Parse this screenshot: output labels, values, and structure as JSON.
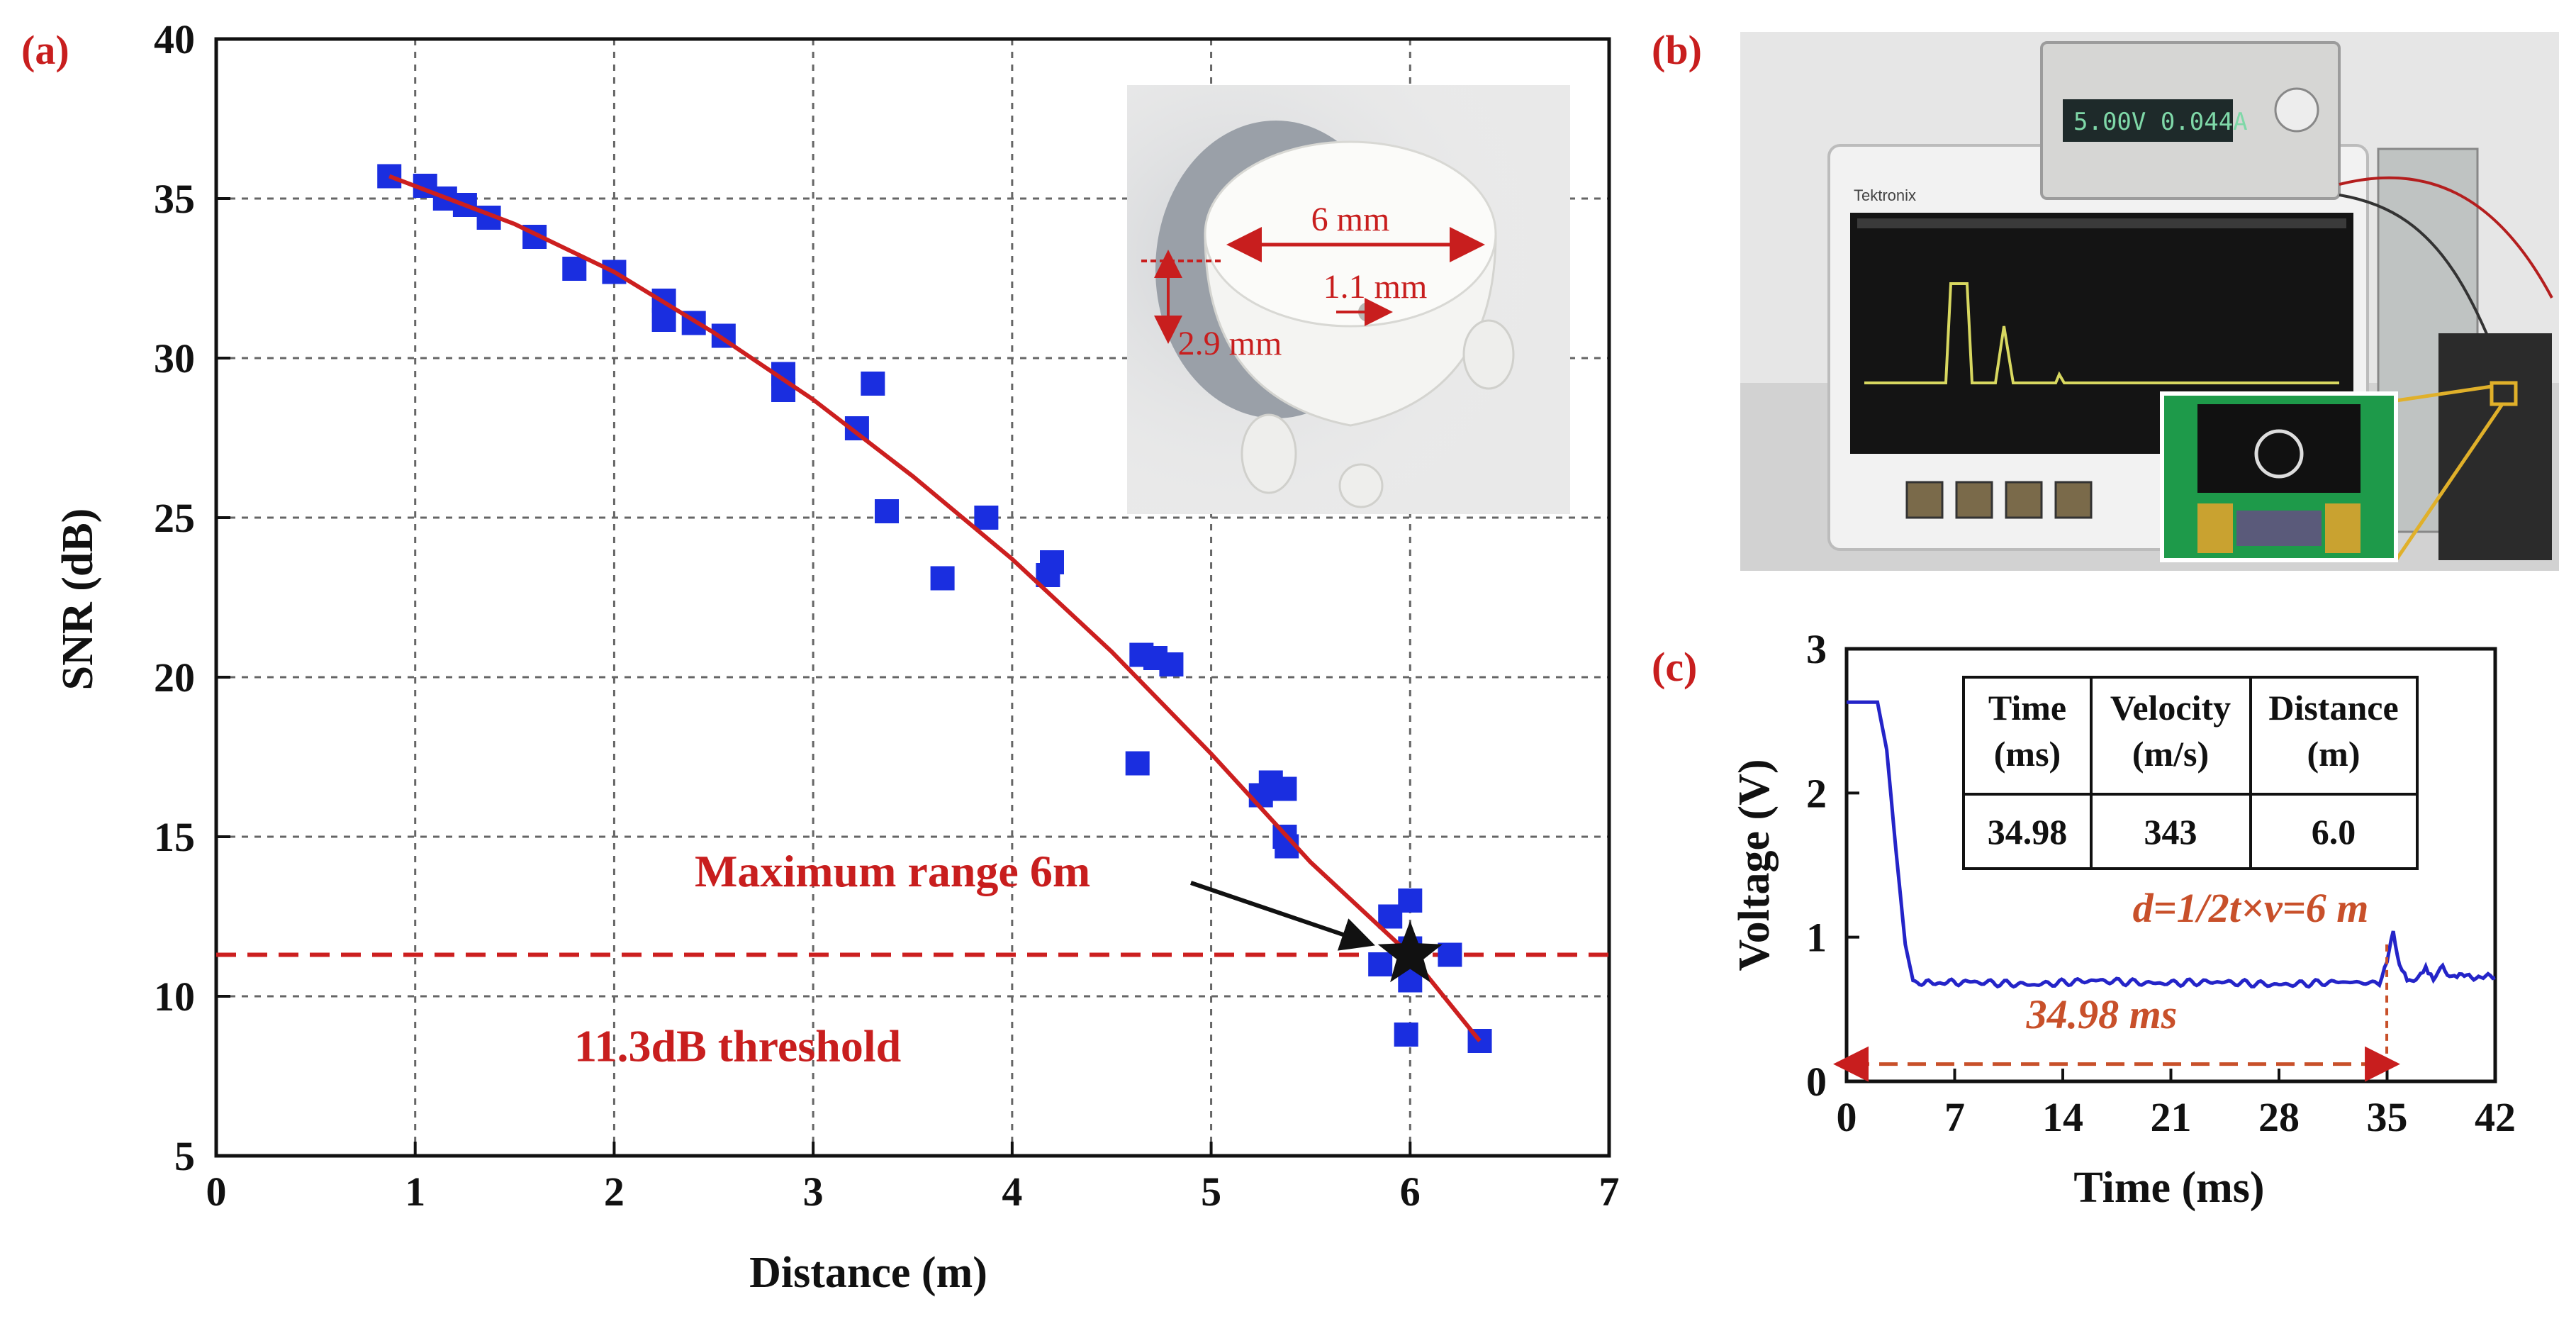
{
  "colors": {
    "marker": "#1a2ee0",
    "fit": "#cc1f1f",
    "threshold": "#cc1f1f",
    "label_red": "#c81e1e",
    "trace": "#2424c8",
    "grid": "#666666"
  },
  "panel_labels": [
    "(a)",
    "(b)",
    "(c)"
  ],
  "chart_data": [
    {
      "panel": "(a)",
      "type": "scatter",
      "xlabel": "Distance (m)",
      "ylabel": "SNR (dB)",
      "xlim": [
        0,
        7
      ],
      "ylim": [
        5,
        40
      ],
      "xticks": [
        "0",
        "1",
        "2",
        "3",
        "4",
        "5",
        "6",
        "7"
      ],
      "yticks": [
        "5",
        "10",
        "15",
        "20",
        "25",
        "30",
        "35",
        "40"
      ],
      "grid": true,
      "series": [
        {
          "name": "measured SNR",
          "points": [
            [
              0.87,
              35.7
            ],
            [
              1.05,
              35.4
            ],
            [
              1.15,
              35.0
            ],
            [
              1.25,
              34.8
            ],
            [
              1.37,
              34.4
            ],
            [
              1.6,
              33.8
            ],
            [
              1.8,
              32.8
            ],
            [
              2.0,
              32.7
            ],
            [
              2.25,
              31.8
            ],
            [
              2.25,
              31.2
            ],
            [
              2.4,
              31.1
            ],
            [
              2.55,
              30.7
            ],
            [
              2.85,
              29.5
            ],
            [
              2.85,
              29.0
            ],
            [
              3.22,
              27.8
            ],
            [
              3.3,
              29.2
            ],
            [
              3.37,
              25.2
            ],
            [
              3.65,
              23.1
            ],
            [
              3.87,
              25.0
            ],
            [
              4.18,
              23.2
            ],
            [
              4.2,
              23.6
            ],
            [
              4.63,
              17.3
            ],
            [
              4.65,
              20.7
            ],
            [
              4.72,
              20.6
            ],
            [
              4.8,
              20.4
            ],
            [
              5.25,
              16.3
            ],
            [
              5.3,
              16.7
            ],
            [
              5.37,
              16.5
            ],
            [
              5.37,
              15.0
            ],
            [
              5.38,
              14.7
            ],
            [
              5.85,
              11.0
            ],
            [
              5.9,
              12.5
            ],
            [
              6.0,
              13.0
            ],
            [
              6.0,
              11.5
            ],
            [
              6.0,
              10.5
            ],
            [
              5.98,
              8.8
            ],
            [
              6.2,
              11.3
            ],
            [
              6.35,
              8.6
            ]
          ]
        },
        {
          "name": "fit",
          "type": "line",
          "points": [
            [
              0.87,
              35.7
            ],
            [
              1.5,
              34.2
            ],
            [
              2.0,
              32.7
            ],
            [
              2.5,
              30.8
            ],
            [
              3.0,
              28.7
            ],
            [
              3.5,
              26.3
            ],
            [
              4.0,
              23.7
            ],
            [
              4.5,
              20.8
            ],
            [
              5.0,
              17.6
            ],
            [
              5.5,
              14.2
            ],
            [
              6.0,
              11.3
            ],
            [
              6.35,
              8.6
            ]
          ]
        }
      ],
      "threshold": {
        "value": 11.3,
        "label": "11.3dB threshold"
      },
      "annotation": {
        "text": "Maximum range 6m",
        "target": [
          6.0,
          11.3
        ]
      }
    },
    {
      "panel": "(c)",
      "type": "line",
      "xlabel": "Time (ms)",
      "ylabel": "Voltage  (V)",
      "xlim": [
        0,
        42
      ],
      "ylim": [
        0,
        3
      ],
      "xticks": [
        "0",
        "7",
        "14",
        "21",
        "28",
        "35",
        "42"
      ],
      "yticks": [
        "0",
        "1",
        "2",
        "3"
      ],
      "series": [
        {
          "name": "echo signal",
          "points": [
            [
              0,
              2.63
            ],
            [
              2.0,
              2.63
            ],
            [
              2.6,
              2.3
            ],
            [
              3.2,
              1.6
            ],
            [
              3.8,
              0.95
            ],
            [
              4.3,
              0.7
            ],
            [
              5,
              0.68
            ],
            [
              8,
              0.69
            ],
            [
              12,
              0.67
            ],
            [
              16,
              0.7
            ],
            [
              20,
              0.68
            ],
            [
              24,
              0.69
            ],
            [
              28,
              0.67
            ],
            [
              32,
              0.69
            ],
            [
              34.5,
              0.68
            ],
            [
              35,
              0.85
            ],
            [
              35.4,
              1.05
            ],
            [
              35.8,
              0.8
            ],
            [
              36.3,
              0.7
            ],
            [
              37,
              0.72
            ],
            [
              37.5,
              0.78
            ],
            [
              38,
              0.7
            ],
            [
              38.6,
              0.8
            ],
            [
              39.2,
              0.72
            ],
            [
              40,
              0.73
            ],
            [
              42,
              0.72
            ]
          ]
        }
      ],
      "table": {
        "headers": [
          [
            "Time",
            "(ms)"
          ],
          [
            "Velocity",
            "(m/s)"
          ],
          [
            "Distance",
            "(m)"
          ]
        ],
        "values": [
          "34.98",
          "343",
          "6.0"
        ]
      },
      "formula": "d=1/2t×v=6 m",
      "interval_label": "34.98 ms",
      "interval": [
        0,
        34.98
      ]
    }
  ],
  "photo_a": {
    "labels": {
      "width": "6 mm",
      "hole": "1.1 mm",
      "height": "2.9 mm"
    }
  },
  "photo_b": {
    "psu_display": "5.00V 0.044A",
    "scope_brand": "Tektronix"
  }
}
